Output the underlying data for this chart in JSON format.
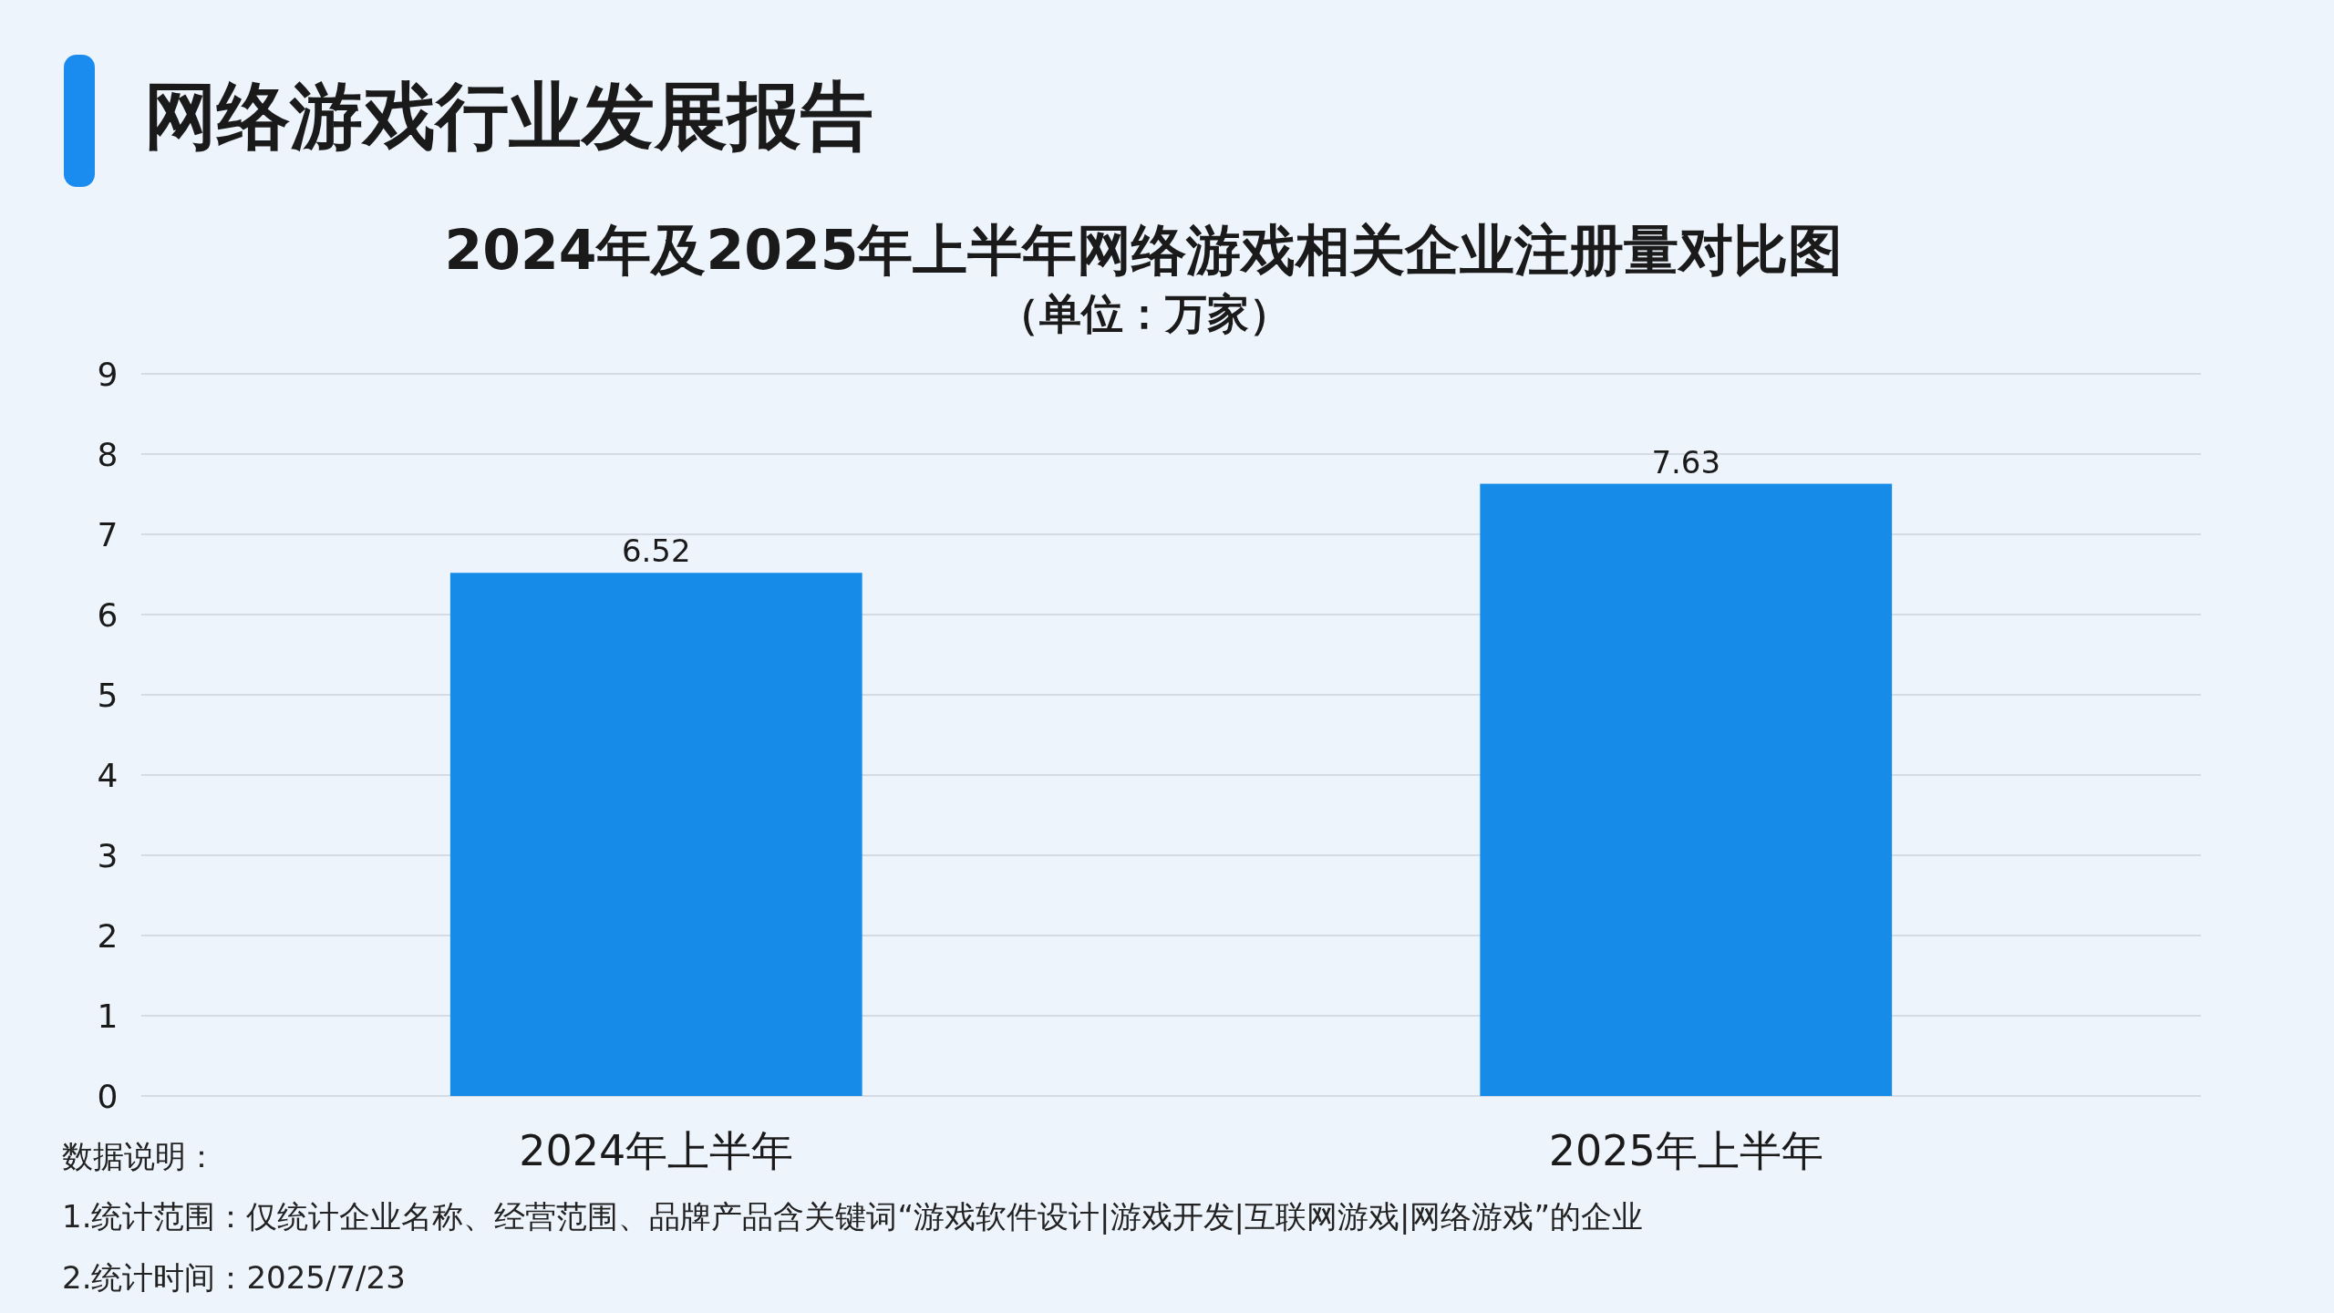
{
  "chart_data": {
    "type": "bar",
    "title": "2024年及2025年上半年网络游戏相关企业注册量对比图",
    "subtitle": "（单位：万家）",
    "categories": [
      "2024年上半年",
      "2025年上半年"
    ],
    "values": [
      6.52,
      7.63
    ],
    "color": "#168be8",
    "ylim": [
      0,
      9
    ],
    "yticks": [
      0,
      1,
      2,
      3,
      4,
      5,
      6,
      7,
      8,
      9
    ],
    "grid": "y",
    "data_labels": true,
    "annotations": [
      "网络游戏行业发展报告",
      "数据说明：",
      "1.统计范围：仅统计企业名称、经营范围、品牌产品含关键词“游戏软件设计|游戏开发|互联网游戏|网络游戏”的企业",
      "2.统计时间：2025/7/23"
    ]
  }
}
